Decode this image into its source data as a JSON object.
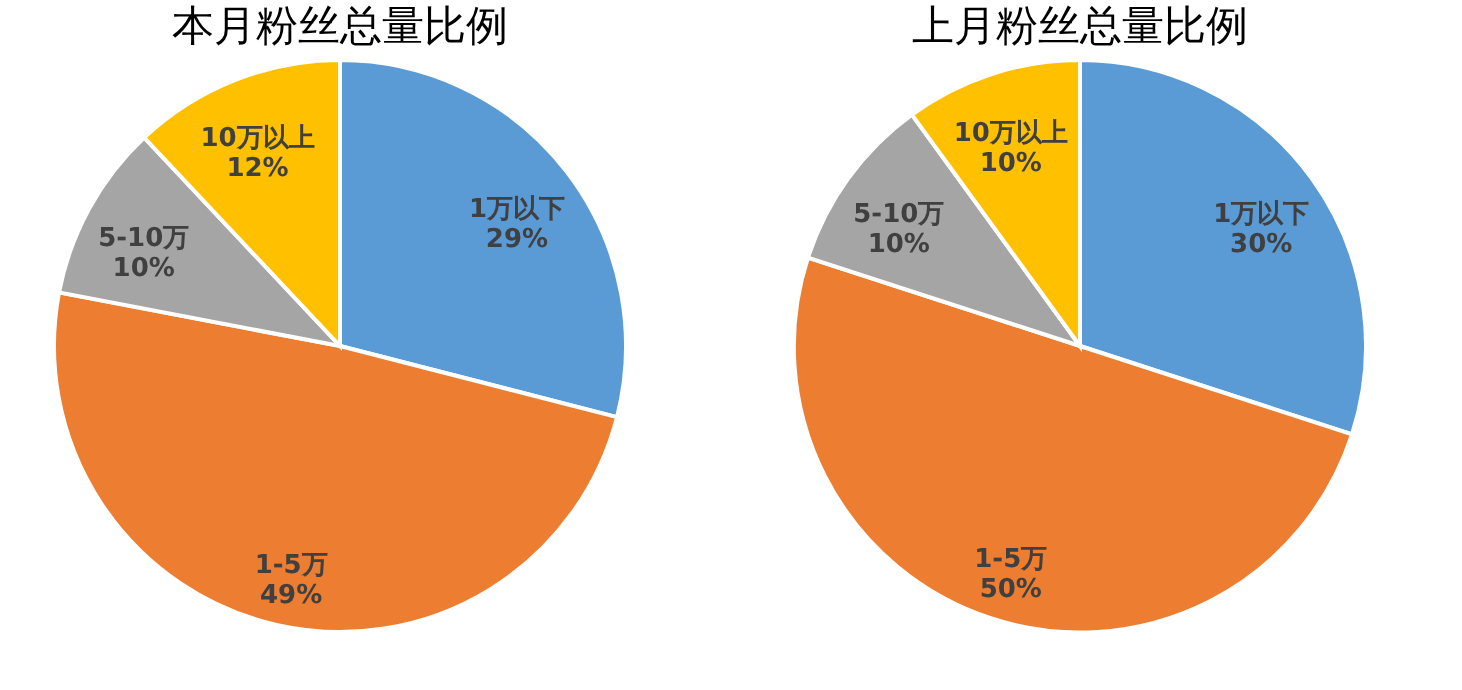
{
  "chart_data": [
    {
      "type": "pie",
      "title": "本月粉丝总量比例",
      "categories": [
        "1万以下",
        "1-5万",
        "5-10万",
        "10万以上"
      ],
      "values": [
        29,
        49,
        10,
        12
      ],
      "value_labels": [
        "29%",
        "49%",
        "10%",
        "12%"
      ],
      "colors": [
        "#5b9bd5",
        "#ed7d31",
        "#a5a5a5",
        "#ffc000"
      ],
      "legend": false
    },
    {
      "type": "pie",
      "title": "上月粉丝总量比例",
      "categories": [
        "1万以下",
        "1-5万",
        "5-10万",
        "10万以上"
      ],
      "values": [
        30,
        50,
        10,
        10
      ],
      "value_labels": [
        "30%",
        "50%",
        "10%",
        "10%"
      ],
      "colors": [
        "#5b9bd5",
        "#ed7d31",
        "#a5a5a5",
        "#ffc000"
      ],
      "legend": false
    }
  ]
}
